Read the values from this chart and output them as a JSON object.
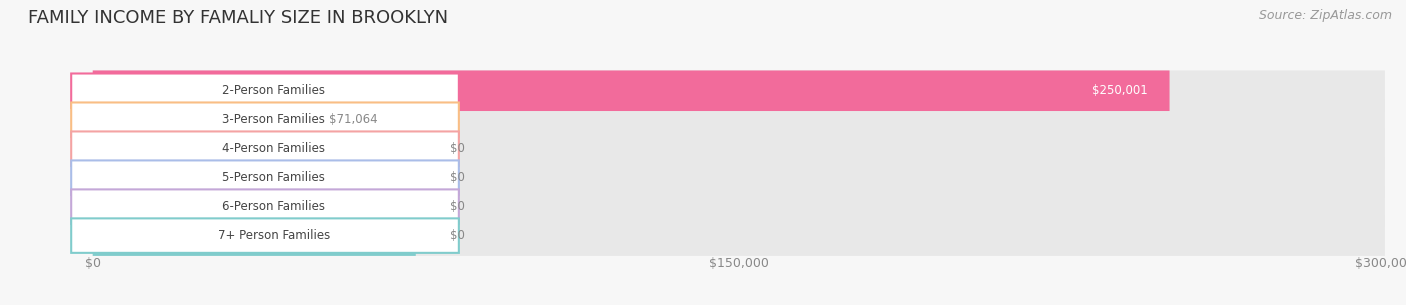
{
  "title": "FAMILY INCOME BY FAMALIY SIZE IN BROOKLYN",
  "source": "Source: ZipAtlas.com",
  "categories": [
    "2-Person Families",
    "3-Person Families",
    "4-Person Families",
    "5-Person Families",
    "6-Person Families",
    "7+ Person Families"
  ],
  "values": [
    250001,
    71064,
    0,
    0,
    0,
    0
  ],
  "bar_colors": [
    "#F26B9B",
    "#F9BE85",
    "#F4A3A3",
    "#AABDE8",
    "#C4A8D8",
    "#80CCCC"
  ],
  "label_border_colors": [
    "#F26B9B",
    "#F9BE85",
    "#F4A3A3",
    "#AABDE8",
    "#C4A8D8",
    "#80CCCC"
  ],
  "xlim": [
    0,
    300000
  ],
  "value_labels": [
    "$250,001",
    "$71,064",
    "$0",
    "$0",
    "$0",
    "$0"
  ],
  "value_label_colors": [
    "white",
    "#888888",
    "#888888",
    "#888888",
    "#888888",
    "#888888"
  ],
  "background_color": "#f7f7f7",
  "row_bg_color": "#e8e8e8",
  "title_fontsize": 13,
  "source_fontsize": 9,
  "label_fontsize": 8.5,
  "value_fontsize": 8.5,
  "zero_bar_width": 75000
}
